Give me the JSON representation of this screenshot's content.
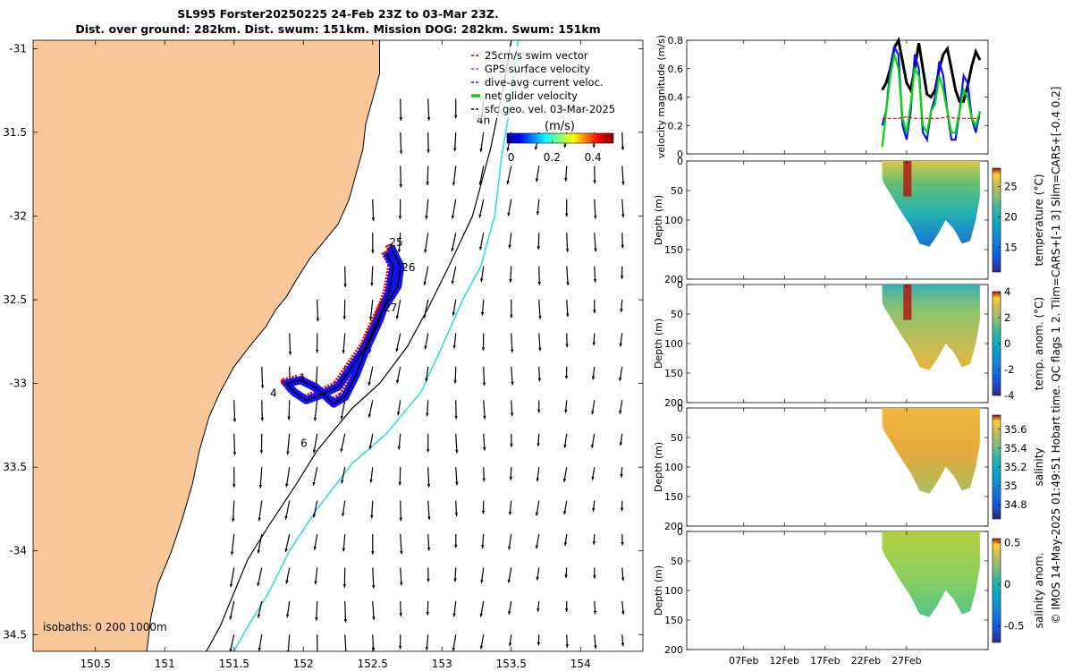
{
  "title": {
    "line1": "SL995 Forster20250225 24-Feb 23Z to 03-Mar 23Z.",
    "line2": "Dist. over ground: 282km. Dist. swum: 151km. Mission DOG: 282km. Swum: 151km"
  },
  "side_note": "© IMOS 14-May-2025 01:49:51 Hobart time. QC flags 1  2. Tlim=CARS+[-1 3] Slim=CARS+[-0.4 0.2]",
  "colors": {
    "land": "#fac898",
    "swim": "#e00000",
    "gps": "#cc33cc",
    "dive": "#1010ff",
    "net": "#00dd00",
    "track": "#000000",
    "isobath_200": "#000000",
    "isobath_1000": "#33dddd"
  },
  "chart_data": [
    {
      "id": "map",
      "type": "scatter",
      "xlim": [
        150.05,
        154.45
      ],
      "ylim": [
        -34.6,
        -30.95
      ],
      "x_ticks": [
        150.5,
        151,
        151.5,
        152,
        152.5,
        153,
        153.5,
        154
      ],
      "x_tick_labels": [
        "150.5",
        "151",
        "151.5",
        "152",
        "152.5",
        "153",
        "153.5",
        "154"
      ],
      "y_ticks": [
        -31,
        -31.5,
        -32,
        -32.5,
        -33,
        -33.5,
        -34,
        -34.5
      ],
      "y_tick_labels": [
        "-31",
        "31.5",
        "-32",
        "32.5",
        "-33",
        "33.5",
        "-34",
        "34.5"
      ],
      "legend": {
        "position": "top-right",
        "entries": [
          {
            "label": "25cm/s swim vector",
            "color": "#e00000"
          },
          {
            "label": "GPS surface velocity",
            "color": "#cc33cc"
          },
          {
            "label": "dive-avg current veloc.",
            "color": "#1010ff"
          },
          {
            "label": "net glider velocity",
            "color": "#00dd00"
          },
          {
            "label": "sfc geo. vel. 03-Mar-2025",
            "color": "#000000"
          }
        ]
      },
      "colorbar": {
        "label": "(m/s)",
        "ticks": [
          0,
          0.2,
          0.4
        ],
        "tick_labels": [
          "0",
          "0.2",
          "0.4"
        ],
        "range": [
          -0.02,
          0.5
        ]
      },
      "isobath_label": "isobaths: 0   200  1000m",
      "annotations": [
        {
          "text": "4h",
          "lon": 153.25,
          "lat": -31.45
        },
        {
          "text": "25",
          "lon": 152.62,
          "lat": -32.18
        },
        {
          "text": "26",
          "lon": 152.71,
          "lat": -32.33
        },
        {
          "text": "27",
          "lon": 152.58,
          "lat": -32.57
        },
        {
          "text": "1",
          "lon": 151.97,
          "lat": -32.99
        },
        {
          "text": "4",
          "lon": 151.76,
          "lat": -33.08
        },
        {
          "text": "6",
          "lon": 151.98,
          "lat": -33.38
        }
      ],
      "coastline": [
        [
          152.55,
          -30.95
        ],
        [
          152.55,
          -31.15
        ],
        [
          152.5,
          -31.3
        ],
        [
          152.45,
          -31.45
        ],
        [
          152.43,
          -31.6
        ],
        [
          152.38,
          -31.75
        ],
        [
          152.33,
          -31.9
        ],
        [
          152.25,
          -32.05
        ],
        [
          152.15,
          -32.15
        ],
        [
          152.05,
          -32.25
        ],
        [
          151.95,
          -32.38
        ],
        [
          151.88,
          -32.48
        ],
        [
          151.8,
          -32.56
        ],
        [
          151.73,
          -32.66
        ],
        [
          151.62,
          -32.77
        ],
        [
          151.5,
          -32.9
        ],
        [
          151.4,
          -33.05
        ],
        [
          151.32,
          -33.2
        ],
        [
          151.25,
          -33.4
        ],
        [
          151.2,
          -33.6
        ],
        [
          151.13,
          -33.8
        ],
        [
          151.05,
          -34.0
        ],
        [
          150.95,
          -34.2
        ],
        [
          150.9,
          -34.4
        ],
        [
          150.87,
          -34.6
        ]
      ],
      "isobath_200": [
        [
          153.5,
          -30.95
        ],
        [
          153.45,
          -31.2
        ],
        [
          153.35,
          -31.6
        ],
        [
          153.22,
          -32.0
        ],
        [
          153.05,
          -32.3
        ],
        [
          152.9,
          -32.55
        ],
        [
          152.75,
          -32.78
        ],
        [
          152.55,
          -33.0
        ],
        [
          152.35,
          -33.15
        ],
        [
          152.1,
          -33.4
        ],
        [
          151.95,
          -33.6
        ],
        [
          151.75,
          -33.85
        ],
        [
          151.6,
          -34.05
        ],
        [
          151.5,
          -34.25
        ],
        [
          151.4,
          -34.45
        ],
        [
          151.3,
          -34.6
        ]
      ],
      "isobath_1000": [
        [
          153.55,
          -30.95
        ],
        [
          153.5,
          -31.3
        ],
        [
          153.43,
          -31.65
        ],
        [
          153.38,
          -32.0
        ],
        [
          153.28,
          -32.3
        ],
        [
          153.15,
          -32.5
        ],
        [
          153.0,
          -32.78
        ],
        [
          152.85,
          -33.05
        ],
        [
          152.6,
          -33.3
        ],
        [
          152.35,
          -33.48
        ],
        [
          152.1,
          -33.75
        ],
        [
          151.9,
          -34.0
        ],
        [
          151.75,
          -34.25
        ],
        [
          151.6,
          -34.45
        ],
        [
          151.5,
          -34.6
        ]
      ],
      "track": [
        [
          152.63,
          -32.18
        ],
        [
          152.7,
          -32.3
        ],
        [
          152.68,
          -32.42
        ],
        [
          152.58,
          -32.55
        ],
        [
          152.52,
          -32.65
        ],
        [
          152.45,
          -32.78
        ],
        [
          152.35,
          -32.9
        ],
        [
          152.25,
          -33.02
        ],
        [
          152.12,
          -33.07
        ],
        [
          152.02,
          -33.1
        ],
        [
          151.93,
          -33.05
        ],
        [
          151.88,
          -33.0
        ],
        [
          151.98,
          -32.98
        ],
        [
          152.1,
          -33.03
        ],
        [
          152.22,
          -33.12
        ],
        [
          152.3,
          -33.08
        ],
        [
          152.38,
          -32.95
        ],
        [
          152.45,
          -32.8
        ],
        [
          152.55,
          -32.62
        ],
        [
          152.62,
          -32.45
        ],
        [
          152.65,
          -32.3
        ],
        [
          152.6,
          -32.22
        ]
      ],
      "vector_field": {
        "lon": [
          151.5,
          151.7,
          151.9,
          152.1,
          152.3,
          152.5,
          152.7,
          152.9,
          153.1,
          153.3,
          153.5,
          153.7,
          153.9,
          154.1,
          154.3
        ],
        "lat": [
          -31.3,
          -31.5,
          -31.7,
          -31.9,
          -32.1,
          -32.3,
          -32.5,
          -32.7,
          -32.9,
          -33.1,
          -33.3,
          -33.5,
          -33.7,
          -33.9,
          -34.1,
          -34.3,
          -34.5
        ],
        "u_mean": -0.05,
        "v_mean": -0.25
      }
    },
    {
      "id": "velocity",
      "type": "line",
      "ylabel": "velocity magnitude (m/s)",
      "ylim": [
        0,
        0.8
      ],
      "y_ticks": [
        0,
        0.2,
        0.4,
        0.6,
        0.8
      ],
      "y_tick_labels": [
        "0",
        "0.2",
        "0.4",
        "0.6",
        "0.8"
      ],
      "xlim": [
        31,
        68
      ],
      "series": [
        {
          "color": "#000000",
          "x": [
            55.0,
            55.5,
            56.0,
            56.5,
            57.0,
            57.5,
            58.0,
            58.5,
            59.0,
            59.5,
            60.0,
            60.5,
            61.0,
            61.5,
            62.0,
            62.5,
            63.0,
            63.5,
            64.0,
            64.5,
            65.0,
            65.5,
            66.0,
            66.5,
            67.0
          ],
          "y": [
            0.45,
            0.5,
            0.6,
            0.75,
            0.8,
            0.65,
            0.5,
            0.45,
            0.6,
            0.78,
            0.6,
            0.42,
            0.4,
            0.45,
            0.6,
            0.7,
            0.74,
            0.6,
            0.45,
            0.37,
            0.37,
            0.48,
            0.62,
            0.72,
            0.66
          ]
        },
        {
          "color": "#1010ff",
          "x": [
            55.0,
            55.5,
            56.0,
            56.5,
            57.0,
            57.5,
            58.0,
            58.5,
            59.0,
            59.5,
            60.0,
            60.5,
            61.0,
            61.5,
            62.0,
            62.5,
            63.0,
            63.5,
            64.0,
            64.5,
            65.0,
            65.5,
            66.0,
            66.5,
            67.0
          ],
          "y": [
            0.2,
            0.3,
            0.6,
            0.75,
            0.7,
            0.2,
            0.1,
            0.3,
            0.7,
            0.6,
            0.15,
            0.1,
            0.3,
            0.4,
            0.65,
            0.55,
            0.3,
            0.1,
            0.1,
            0.3,
            0.55,
            0.5,
            0.25,
            0.15,
            0.3
          ]
        },
        {
          "color": "#00dd00",
          "x": [
            55.0,
            55.5,
            56.0,
            56.5,
            57.0,
            57.5,
            58.0,
            58.5,
            59.0,
            59.5,
            60.0,
            60.5,
            61.0,
            61.5,
            62.0,
            62.5,
            63.0,
            63.5,
            64.0,
            64.5,
            65.0,
            65.5,
            66.0,
            66.5,
            67.0
          ],
          "y": [
            0.05,
            0.3,
            0.55,
            0.7,
            0.6,
            0.25,
            0.15,
            0.35,
            0.6,
            0.55,
            0.2,
            0.15,
            0.3,
            0.35,
            0.55,
            0.45,
            0.3,
            0.15,
            0.15,
            0.3,
            0.45,
            0.4,
            0.25,
            0.2,
            0.3
          ]
        },
        {
          "color": "#e00000",
          "x": [
            55.0,
            56.0,
            57.0,
            58.0,
            59.0,
            60.0,
            61.0,
            62.0,
            63.0,
            64.0,
            65.0,
            66.0,
            67.0
          ],
          "y": [
            0.25,
            0.25,
            0.25,
            0.26,
            0.25,
            0.25,
            0.25,
            0.25,
            0.26,
            0.25,
            0.25,
            0.25,
            0.25
          ]
        }
      ]
    },
    {
      "id": "temperature",
      "type": "heatmap",
      "ylabel": "Depth (m)",
      "cbar_label": "temperature (°C)",
      "clim": [
        11,
        28
      ],
      "cbar_ticks": [
        15,
        20,
        25
      ],
      "cbar_tick_labels": [
        "15",
        "20",
        "25"
      ],
      "y_ticks": [
        0,
        50,
        100,
        150,
        200
      ],
      "y_tick_labels": [
        "0",
        "50",
        "100",
        "150",
        "200"
      ],
      "colormap": "parula"
    },
    {
      "id": "temp_anom",
      "type": "heatmap",
      "ylabel": "Depth (m)",
      "cbar_label": "temp. anom. (°C)",
      "clim": [
        -4,
        4
      ],
      "cbar_ticks": [
        -4,
        -2,
        0,
        2,
        4
      ],
      "cbar_tick_labels": [
        "-4",
        "-2",
        "0",
        "2",
        "4"
      ],
      "y_ticks": [
        0,
        50,
        100,
        150,
        200
      ],
      "y_tick_labels": [
        "0",
        "50",
        "100",
        "150",
        "200"
      ],
      "colormap": "parula"
    },
    {
      "id": "salinity",
      "type": "heatmap",
      "ylabel": "Depth (m)",
      "cbar_label": "salinity",
      "clim": [
        34.65,
        35.75
      ],
      "cbar_ticks": [
        34.8,
        35,
        35.2,
        35.4,
        35.6
      ],
      "cbar_tick_labels": [
        "34.8",
        "35",
        "35.2",
        "35.4",
        "35.6"
      ],
      "y_ticks": [
        0,
        50,
        100,
        150,
        200
      ],
      "y_tick_labels": [
        "0",
        "50",
        "100",
        "150",
        "200"
      ],
      "colormap": "parula"
    },
    {
      "id": "sal_anom",
      "type": "heatmap",
      "ylabel": "Depth (m)",
      "cbar_label": "salinity anom.",
      "clim": [
        -0.7,
        0.55
      ],
      "cbar_ticks": [
        -0.5,
        0,
        0.5
      ],
      "cbar_tick_labels": [
        "-0.5",
        "0",
        "0.5"
      ],
      "y_ticks": [
        0,
        50,
        100,
        150,
        200
      ],
      "y_tick_labels": [
        "0",
        "50",
        "100",
        "150",
        "200"
      ],
      "colormap": "parula"
    }
  ],
  "time_axis": {
    "ticks": [
      38,
      43,
      48,
      53,
      58
    ],
    "tick_labels": [
      "07Feb",
      "12Feb",
      "17Feb",
      "22Feb",
      "27Feb"
    ]
  }
}
